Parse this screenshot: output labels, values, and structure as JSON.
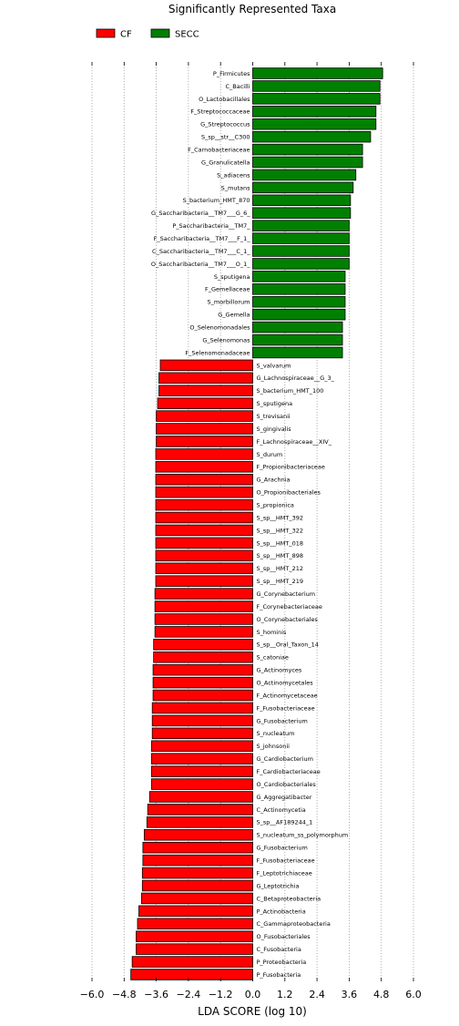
{
  "chart_data": {
    "type": "bar",
    "orientation": "horizontal",
    "title": "Significantly Represented Taxa",
    "xlabel": "LDA SCORE (log 10)",
    "xlim": [
      -6.0,
      6.0
    ],
    "xticks": [
      -6.0,
      -4.8,
      -3.6,
      -2.4,
      -1.2,
      0.0,
      1.2,
      2.4,
      3.6,
      4.8,
      6.0
    ],
    "xtick_labels": [
      "−6.0",
      "−4.8",
      "−3.6",
      "−2.4",
      "−1.2",
      "0.0",
      "1.2",
      "2.4",
      "3.6",
      "4.8",
      "6.0"
    ],
    "grid": "vertical-dotted",
    "legend": {
      "placement": "top-left",
      "entries": [
        {
          "name": "CF",
          "color": "#ff0000"
        },
        {
          "name": "SECC",
          "color": "#008000"
        }
      ]
    },
    "bars": [
      {
        "label": "P_Firmicutes",
        "value": 4.85,
        "group": "SECC"
      },
      {
        "label": "C_Bacilli",
        "value": 4.75,
        "group": "SECC"
      },
      {
        "label": "O_Lactobacillales",
        "value": 4.75,
        "group": "SECC"
      },
      {
        "label": "F_Streptococcaceae",
        "value": 4.6,
        "group": "SECC"
      },
      {
        "label": "G_Streptococcus",
        "value": 4.6,
        "group": "SECC"
      },
      {
        "label": "S_sp__str__C300",
        "value": 4.4,
        "group": "SECC"
      },
      {
        "label": "F_Carnobacteriaceae",
        "value": 4.1,
        "group": "SECC"
      },
      {
        "label": "G_Granulicatella",
        "value": 4.1,
        "group": "SECC"
      },
      {
        "label": "S_adiacens",
        "value": 3.85,
        "group": "SECC"
      },
      {
        "label": "S_mutans",
        "value": 3.75,
        "group": "SECC"
      },
      {
        "label": "S_bacterium_HMT_870",
        "value": 3.65,
        "group": "SECC"
      },
      {
        "label": "G_Saccharibacteria__TM7___G_6_",
        "value": 3.65,
        "group": "SECC"
      },
      {
        "label": "P_Saccharibacteria__TM7_",
        "value": 3.6,
        "group": "SECC"
      },
      {
        "label": "F_Saccharibacteria__TM7___F_1_",
        "value": 3.6,
        "group": "SECC"
      },
      {
        "label": "C_Saccharibacteria__TM7___C_1_",
        "value": 3.6,
        "group": "SECC"
      },
      {
        "label": "O_Saccharibacteria__TM7___O_1_",
        "value": 3.6,
        "group": "SECC"
      },
      {
        "label": "S_sputigena",
        "value": 3.45,
        "group": "SECC"
      },
      {
        "label": "F_Gemellaceae",
        "value": 3.45,
        "group": "SECC"
      },
      {
        "label": "S_morbillorum",
        "value": 3.45,
        "group": "SECC"
      },
      {
        "label": "G_Gemella",
        "value": 3.45,
        "group": "SECC"
      },
      {
        "label": "O_Selenomonadales",
        "value": 3.35,
        "group": "SECC"
      },
      {
        "label": "G_Selenomonas",
        "value": 3.35,
        "group": "SECC"
      },
      {
        "label": "F_Selenomonadaceae",
        "value": 3.35,
        "group": "SECC"
      },
      {
        "label": "S_valvarum",
        "value": -3.45,
        "group": "CF"
      },
      {
        "label": "G_Lachnospiraceae__G_3_",
        "value": -3.5,
        "group": "CF"
      },
      {
        "label": "S_bacterium_HMT_100",
        "value": -3.5,
        "group": "CF"
      },
      {
        "label": "S_sputigena",
        "value": -3.55,
        "group": "CF"
      },
      {
        "label": "S_trevisanii",
        "value": -3.6,
        "group": "CF"
      },
      {
        "label": "S_gingivalis",
        "value": -3.6,
        "group": "CF"
      },
      {
        "label": "F_Lachnospiraceae__XIV_",
        "value": -3.6,
        "group": "CF"
      },
      {
        "label": "S_durum",
        "value": -3.62,
        "group": "CF"
      },
      {
        "label": "F_Propionibacteriaceae",
        "value": -3.62,
        "group": "CF"
      },
      {
        "label": "G_Arachnia",
        "value": -3.62,
        "group": "CF"
      },
      {
        "label": "O_Propionibacteriales",
        "value": -3.62,
        "group": "CF"
      },
      {
        "label": "S_propionica",
        "value": -3.62,
        "group": "CF"
      },
      {
        "label": "S_sp__HMT_392",
        "value": -3.62,
        "group": "CF"
      },
      {
        "label": "S_sp__HMT_322",
        "value": -3.62,
        "group": "CF"
      },
      {
        "label": "S_sp__HMT_018",
        "value": -3.62,
        "group": "CF"
      },
      {
        "label": "S_sp__HMT_898",
        "value": -3.62,
        "group": "CF"
      },
      {
        "label": "S_sp__HMT_212",
        "value": -3.62,
        "group": "CF"
      },
      {
        "label": "S_sp__HMT_219",
        "value": -3.62,
        "group": "CF"
      },
      {
        "label": "G_Corynebacterium",
        "value": -3.65,
        "group": "CF"
      },
      {
        "label": "F_Corynebacteriaceae",
        "value": -3.65,
        "group": "CF"
      },
      {
        "label": "O_Corynebacteriales",
        "value": -3.65,
        "group": "CF"
      },
      {
        "label": "S_hominis",
        "value": -3.65,
        "group": "CF"
      },
      {
        "label": "S_sp__Oral_Taxon_14",
        "value": -3.7,
        "group": "CF"
      },
      {
        "label": "S_catoniae",
        "value": -3.7,
        "group": "CF"
      },
      {
        "label": "G_Actinomyces",
        "value": -3.72,
        "group": "CF"
      },
      {
        "label": "O_Actinomycetales",
        "value": -3.72,
        "group": "CF"
      },
      {
        "label": "F_Actinomycetaceae",
        "value": -3.72,
        "group": "CF"
      },
      {
        "label": "F_Fusobacteriaceae",
        "value": -3.75,
        "group": "CF"
      },
      {
        "label": "G_Fusobacterium",
        "value": -3.75,
        "group": "CF"
      },
      {
        "label": "S_nucleatum",
        "value": -3.75,
        "group": "CF"
      },
      {
        "label": "S_johnsonii",
        "value": -3.78,
        "group": "CF"
      },
      {
        "label": "G_Cardiobacterium",
        "value": -3.78,
        "group": "CF"
      },
      {
        "label": "F_Cardiobacteriaceae",
        "value": -3.78,
        "group": "CF"
      },
      {
        "label": "O_Cardiobacteriales",
        "value": -3.78,
        "group": "CF"
      },
      {
        "label": "G_Aggregatibacter",
        "value": -3.85,
        "group": "CF"
      },
      {
        "label": "C_Actinomycetia",
        "value": -3.92,
        "group": "CF"
      },
      {
        "label": "S_sp__AF189244_1",
        "value": -3.95,
        "group": "CF"
      },
      {
        "label": "S_nucleatum_ss_polymorphum",
        "value": -4.05,
        "group": "CF"
      },
      {
        "label": "G_Fusobacterium",
        "value": -4.1,
        "group": "CF"
      },
      {
        "label": "F_Fusobacteriaceae",
        "value": -4.1,
        "group": "CF"
      },
      {
        "label": "F_Leptotrichiaceae",
        "value": -4.12,
        "group": "CF"
      },
      {
        "label": "G_Leptotrichia",
        "value": -4.12,
        "group": "CF"
      },
      {
        "label": "C_Betaproteobacteria",
        "value": -4.15,
        "group": "CF"
      },
      {
        "label": "P_Actinobacteria",
        "value": -4.25,
        "group": "CF"
      },
      {
        "label": "C_Gammaproteobacteria",
        "value": -4.3,
        "group": "CF"
      },
      {
        "label": "O_Fusobacteriales",
        "value": -4.35,
        "group": "CF"
      },
      {
        "label": "C_Fusobacteria",
        "value": -4.35,
        "group": "CF"
      },
      {
        "label": "P_Proteobacteria",
        "value": -4.5,
        "group": "CF"
      },
      {
        "label": "P_Fusobacteria",
        "value": -4.55,
        "group": "CF"
      }
    ]
  }
}
